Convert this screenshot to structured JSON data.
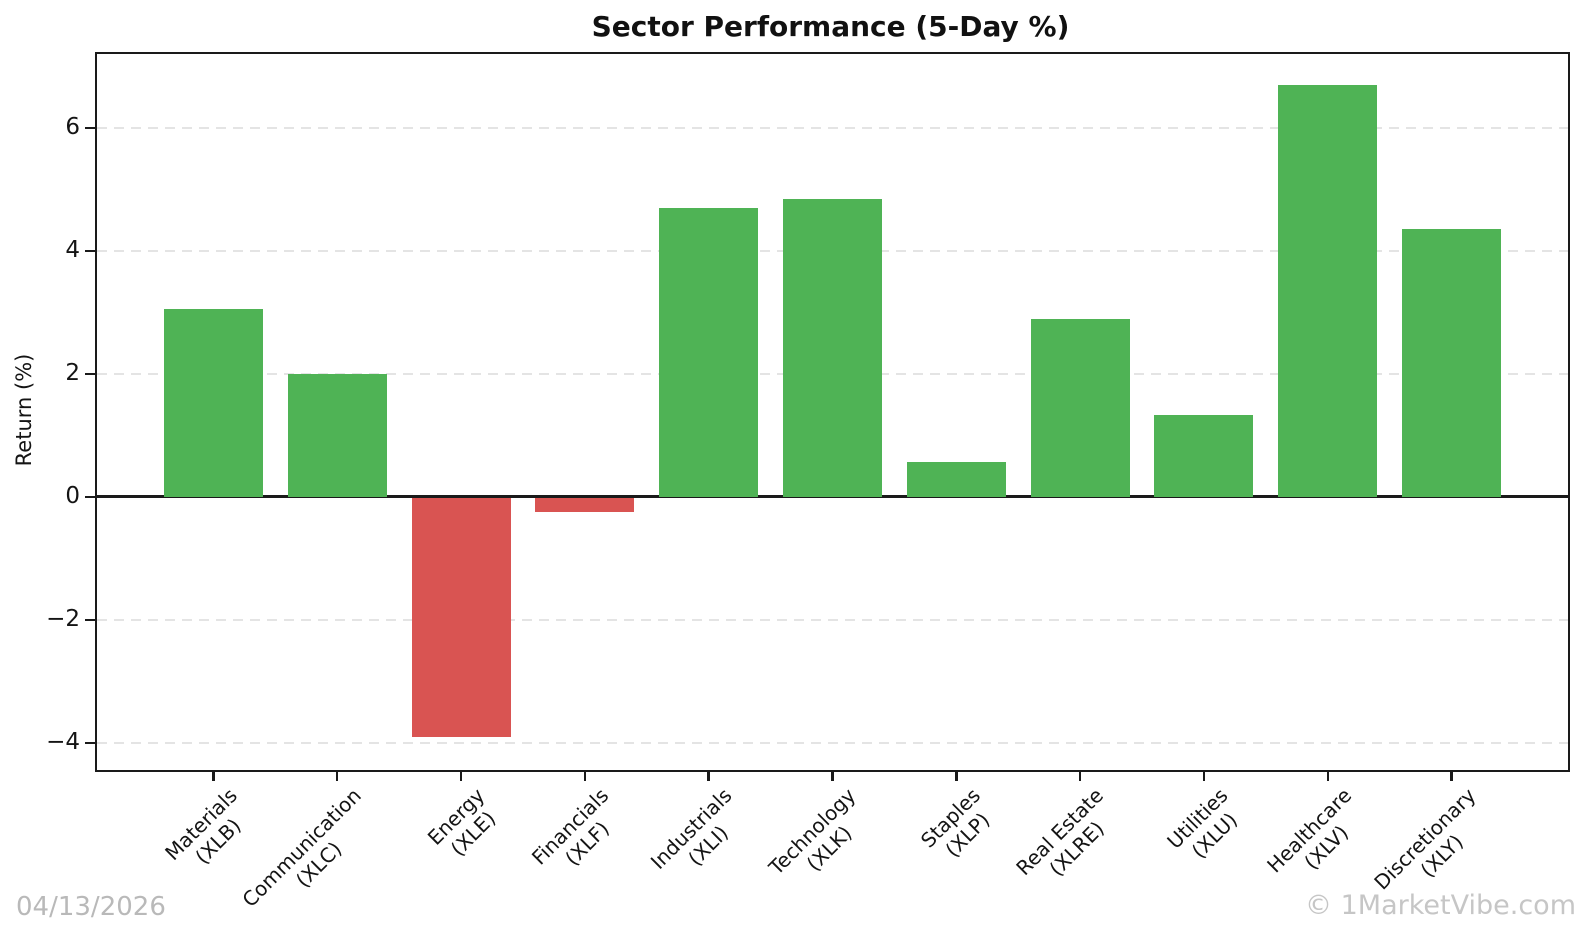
{
  "chart_data": {
    "type": "bar",
    "title": "Sector Performance (5-Day %)",
    "ylabel": "Return (%)",
    "categories": [
      "Materials",
      "Communication",
      "Energy",
      "Financials",
      "Industrials",
      "Technology",
      "Staples",
      "Real Estate",
      "Utilities",
      "Healthcare",
      "Discretionary"
    ],
    "tickers": [
      "(XLB)",
      "(XLC)",
      "(XLE)",
      "(XLF)",
      "(XLI)",
      "(XLK)",
      "(XLP)",
      "(XLRE)",
      "(XLU)",
      "(XLV)",
      "(XLY)"
    ],
    "values": [
      3.05,
      2.0,
      -3.9,
      -0.25,
      4.7,
      4.85,
      0.57,
      2.9,
      1.33,
      6.7,
      4.35
    ],
    "ylim": [
      -4.44,
      7.2
    ],
    "yticks": [
      -4,
      -2,
      0,
      2,
      4,
      6
    ],
    "grid": "horizontal dashed at yticks, solid black line at zero",
    "legend": "none",
    "positive_color": "#4fb355",
    "negative_color": "#d95452",
    "grid_color": "#e4e4e4",
    "axis_color": "#1a1a1a"
  },
  "footer": {
    "date": "04/13/2026",
    "watermark": "© 1MarketVibe.com"
  }
}
